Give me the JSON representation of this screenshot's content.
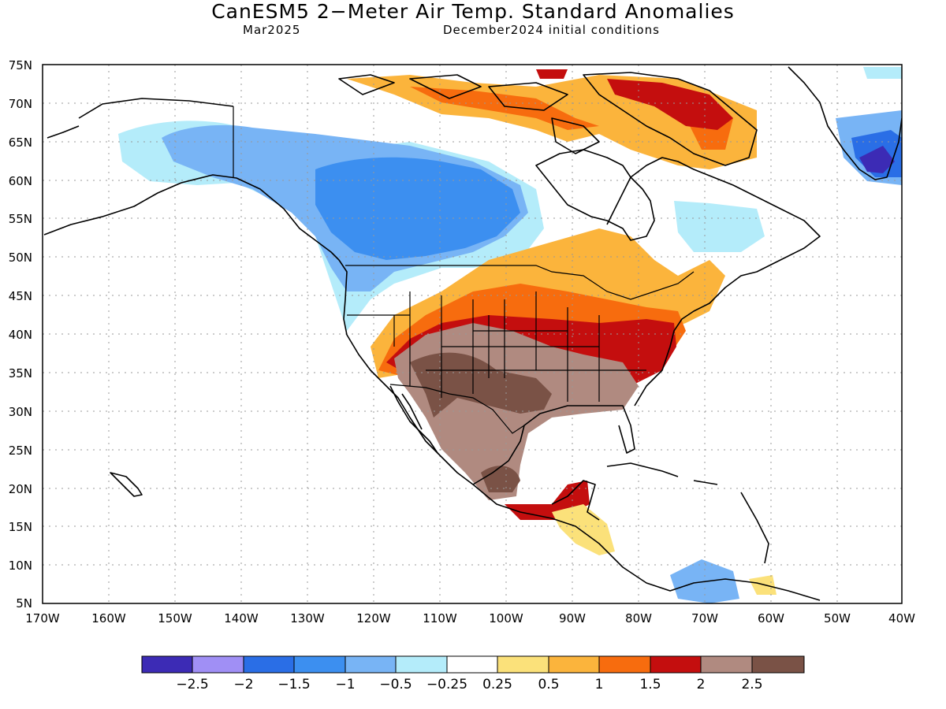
{
  "header": {
    "title": "CanESM5 2−Meter Air Temp. Standard Anomalies",
    "valid_month": "Mar2025",
    "init": "December2024 initial conditions"
  },
  "map": {
    "lon_range": [
      -170,
      -40
    ],
    "lat_range": [
      5,
      75
    ],
    "lat_labels": [
      "75N",
      "70N",
      "65N",
      "60N",
      "55N",
      "50N",
      "45N",
      "40N",
      "35N",
      "30N",
      "25N",
      "20N",
      "15N",
      "10N",
      "5N"
    ],
    "lon_labels": [
      "170W",
      "160W",
      "150W",
      "140W",
      "130W",
      "120W",
      "110W",
      "100W",
      "90W",
      "80W",
      "70W",
      "60W",
      "50W",
      "40W"
    ],
    "gridlines": "dotted"
  },
  "colorbar": {
    "colors": [
      "#3c2bb5",
      "#a08ff5",
      "#2a6ee6",
      "#3c8ff0",
      "#78b4f5",
      "#b4ecfa",
      "#ffffff",
      "#fbe17a",
      "#fbb43c",
      "#f76c0e",
      "#c40e0e",
      "#b08a80",
      "#7a5246"
    ],
    "labels": [
      "−2.5",
      "−2",
      "−1.5",
      "−1",
      "−0.5",
      "−0.25",
      "0.25",
      "0.5",
      "1",
      "1.5",
      "2",
      "2.5"
    ]
  },
  "anomaly_regions": [
    {
      "name": "alaska-cold",
      "color": "#b4ecfa"
    },
    {
      "name": "western-canada-cold",
      "color": "#78b4f5"
    },
    {
      "name": "canada-strong-cold",
      "color": "#3c8ff0"
    },
    {
      "name": "great-plains-warm",
      "color": "#fbb43c"
    },
    {
      "name": "central-us-warm",
      "color": "#f76c0e"
    },
    {
      "name": "eastern-us-very-warm",
      "color": "#c40e0e"
    },
    {
      "name": "southwest-extreme-warm",
      "color": "#b08a80"
    },
    {
      "name": "southwest-core-extreme",
      "color": "#7a5246"
    },
    {
      "name": "arctic-warm",
      "color": "#c40e0e"
    },
    {
      "name": "greenland-cold",
      "color": "#2a6ee6"
    }
  ]
}
